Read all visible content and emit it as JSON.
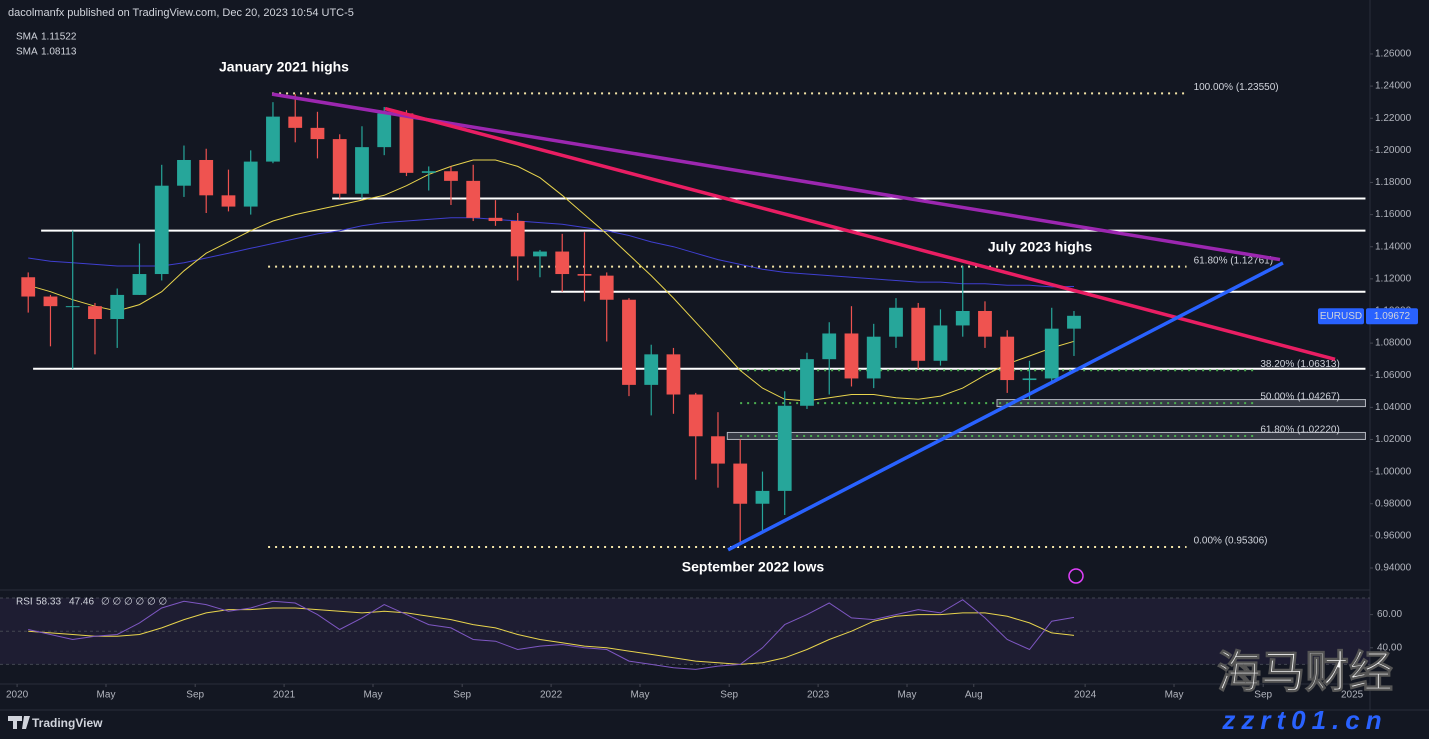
{
  "chart_data": {
    "type": "candlestick",
    "title": "dacolmanfx published on TradingView.com, Dec 20, 2023 10:54 UTC-5",
    "x": [
      2020.0417,
      2020.125,
      2020.2083,
      2020.2917,
      2020.375,
      2020.4583,
      2020.5417,
      2020.625,
      2020.7083,
      2020.7917,
      2020.875,
      2020.9583,
      2021.0417,
      2021.125,
      2021.2083,
      2021.2917,
      2021.375,
      2021.4583,
      2021.5417,
      2021.625,
      2021.7083,
      2021.7917,
      2021.875,
      2021.9583,
      2022.0417,
      2022.125,
      2022.2083,
      2022.2917,
      2022.375,
      2022.4583,
      2022.5417,
      2022.625,
      2022.7083,
      2022.7917,
      2022.875,
      2022.9583,
      2023.0417,
      2023.125,
      2023.2083,
      2023.2917,
      2023.375,
      2023.4583,
      2023.5417,
      2023.625,
      2023.7083,
      2023.7917,
      2023.875,
      2023.9583
    ],
    "series": [
      {
        "name": "EURUSD",
        "last": 1.09672,
        "up_color": "#26a69a",
        "down_color": "#ef5350",
        "open": [
          1.121,
          1.109,
          1.103,
          1.103,
          1.095,
          1.11,
          1.123,
          1.178,
          1.194,
          1.172,
          1.165,
          1.193,
          1.221,
          1.214,
          1.207,
          1.173,
          1.202,
          1.223,
          1.186,
          1.187,
          1.181,
          1.158,
          1.156,
          1.134,
          1.137,
          1.123,
          1.122,
          1.107,
          1.054,
          1.073,
          1.048,
          1.022,
          1.005,
          0.98,
          0.988,
          1.041,
          1.07,
          1.086,
          1.058,
          1.084,
          1.102,
          1.069,
          1.091,
          1.1,
          1.084,
          1.057,
          1.058,
          1.089
        ],
        "high": [
          1.124,
          1.11,
          1.15,
          1.105,
          1.114,
          1.142,
          1.191,
          1.203,
          1.201,
          1.188,
          1.2,
          1.23,
          1.235,
          1.224,
          1.21,
          1.215,
          1.227,
          1.225,
          1.19,
          1.19,
          1.191,
          1.169,
          1.161,
          1.138,
          1.148,
          1.149,
          1.124,
          1.108,
          1.079,
          1.077,
          1.049,
          1.037,
          1.02,
          1.0,
          1.05,
          1.074,
          1.093,
          1.103,
          1.092,
          1.108,
          1.105,
          1.101,
          1.128,
          1.106,
          1.088,
          1.069,
          1.102,
          1.1
        ],
        "low": [
          1.099,
          1.078,
          1.064,
          1.073,
          1.077,
          1.11,
          1.119,
          1.171,
          1.161,
          1.162,
          1.16,
          1.192,
          1.205,
          1.195,
          1.17,
          1.17,
          1.197,
          1.184,
          1.175,
          1.166,
          1.156,
          1.153,
          1.119,
          1.121,
          1.112,
          1.106,
          1.081,
          1.047,
          1.035,
          1.036,
          0.995,
          0.99,
          0.954,
          0.963,
          0.973,
          1.039,
          1.048,
          1.053,
          1.052,
          1.077,
          1.064,
          1.066,
          1.084,
          1.077,
          1.049,
          1.045,
          1.055,
          1.072
        ],
        "close": [
          1.109,
          1.103,
          1.103,
          1.095,
          1.11,
          1.123,
          1.178,
          1.194,
          1.172,
          1.165,
          1.193,
          1.221,
          1.214,
          1.207,
          1.173,
          1.202,
          1.223,
          1.186,
          1.187,
          1.181,
          1.158,
          1.156,
          1.134,
          1.137,
          1.123,
          1.122,
          1.107,
          1.054,
          1.073,
          1.048,
          1.022,
          1.005,
          0.98,
          0.988,
          1.041,
          1.07,
          1.086,
          1.058,
          1.084,
          1.102,
          1.069,
          1.091,
          1.1,
          1.084,
          1.057,
          1.058,
          1.089,
          1.097
        ]
      }
    ],
    "sma": [
      {
        "name": "SMA",
        "last": 1.11522,
        "color": "#3f3fd0",
        "values": [
          1.133,
          1.131,
          1.13,
          1.129,
          1.128,
          1.128,
          1.128,
          1.13,
          1.133,
          1.136,
          1.139,
          1.142,
          1.145,
          1.148,
          1.15,
          1.153,
          1.155,
          1.156,
          1.157,
          1.158,
          1.158,
          1.157,
          1.156,
          1.155,
          1.154,
          1.152,
          1.15,
          1.147,
          1.143,
          1.14,
          1.136,
          1.132,
          1.129,
          1.126,
          1.124,
          1.123,
          1.122,
          1.121,
          1.12,
          1.119,
          1.118,
          1.118,
          1.117,
          1.117,
          1.116,
          1.116,
          1.115,
          1.11522
        ]
      },
      {
        "name": "SMA",
        "last": 1.08113,
        "color": "#e8d44d",
        "values": [
          1.116,
          1.112,
          1.107,
          1.103,
          1.1,
          1.104,
          1.112,
          1.125,
          1.136,
          1.143,
          1.15,
          1.156,
          1.16,
          1.163,
          1.166,
          1.169,
          1.172,
          1.178,
          1.185,
          1.19,
          1.194,
          1.194,
          1.19,
          1.183,
          1.172,
          1.16,
          1.148,
          1.135,
          1.122,
          1.108,
          1.093,
          1.078,
          1.063,
          1.052,
          1.045,
          1.044,
          1.046,
          1.048,
          1.048,
          1.046,
          1.045,
          1.047,
          1.052,
          1.06,
          1.067,
          1.072,
          1.077,
          1.08113
        ]
      }
    ],
    "xlim": [
      2019.936,
      2025.067
    ],
    "xticks": [
      2020,
      {
        "value": 2020.333,
        "label": "May"
      },
      {
        "value": 2020.667,
        "label": "Sep"
      },
      2021,
      {
        "value": 2021.333,
        "label": "May"
      },
      {
        "value": 2021.667,
        "label": "Sep"
      },
      2022,
      {
        "value": 2022.333,
        "label": "May"
      },
      {
        "value": 2022.667,
        "label": "Sep"
      },
      2023,
      {
        "value": 2023.333,
        "label": "May"
      },
      {
        "value": 2023.583,
        "label": "Aug"
      },
      2024,
      {
        "value": 2024.333,
        "label": "May"
      },
      {
        "value": 2024.667,
        "label": "Sep"
      },
      2025
    ],
    "ylim": [
      0.9263,
      1.2936
    ],
    "yticks": [
      {
        "value": 0.94,
        "label": "0.94000"
      },
      {
        "value": 0.96,
        "label": "0.96000"
      },
      {
        "value": 0.98,
        "label": "0.98000"
      },
      {
        "value": 1.0,
        "label": "1.00000"
      },
      {
        "value": 1.02,
        "label": "1.02000"
      },
      {
        "value": 1.04,
        "label": "1.04000"
      },
      {
        "value": 1.06,
        "label": "1.06000"
      },
      {
        "value": 1.08,
        "label": "1.08000"
      },
      {
        "value": 1.1,
        "label": "1.10000"
      },
      {
        "value": 1.12,
        "label": "1.12000"
      },
      {
        "value": 1.14,
        "label": "1.14000"
      },
      {
        "value": 1.16,
        "label": "1.16000"
      },
      {
        "value": 1.18,
        "label": "1.18000"
      },
      {
        "value": 1.2,
        "label": "1.20000"
      },
      {
        "value": 1.22,
        "label": "1.22000"
      },
      {
        "value": 1.24,
        "label": "1.24000"
      },
      {
        "value": 1.26,
        "label": "1.26000"
      }
    ],
    "grid": false,
    "levels": [
      {
        "value": 1.17,
        "x": [
          2021.18,
          2025.05
        ],
        "color": "#ffffff"
      },
      {
        "value": 1.15,
        "x": [
          2020.09,
          2025.05
        ],
        "color": "#ffffff"
      },
      {
        "value": 1.112,
        "x": [
          2022.0,
          2025.05
        ],
        "color": "#ffffff"
      },
      {
        "value": 1.064,
        "x": [
          2020.06,
          2025.05
        ],
        "color": "#ffffff"
      }
    ],
    "fib": [
      {
        "value": 1.2355,
        "label": "100.00% (1.23550)",
        "x": [
          2020.955,
          2024.38
        ],
        "color": "#f5e6a8"
      },
      {
        "value": 1.12761,
        "label": "61.80% (1.12761)",
        "x": [
          2020.94,
          2024.38
        ],
        "color": "#f5e6a8"
      },
      {
        "value": 1.06313,
        "label": "38.20% (1.06313)",
        "x": [
          2022.708,
          2024.63
        ],
        "color": "#4caf50"
      },
      {
        "value": 1.04267,
        "label": "50.00% (1.04267)",
        "x": [
          2022.708,
          2024.63
        ],
        "color": "#4caf50",
        "zone": [
          2023.67,
          2025.05
        ]
      },
      {
        "value": 1.0222,
        "label": "61.80% (1.02220)",
        "x": [
          2022.708,
          2024.63
        ],
        "color": "#4caf50",
        "zone": [
          2022.66,
          2025.05
        ]
      },
      {
        "value": 0.95306,
        "label": "0.00% (0.95306)",
        "x": [
          2020.94,
          2024.38
        ],
        "color": "#f5e6a8"
      }
    ],
    "trendlines": [
      {
        "x": [
          2020.955,
          2024.73
        ],
        "y": [
          1.235,
          1.132
        ],
        "color": "#9c27b0"
      },
      {
        "x": [
          2021.378,
          2024.936
        ],
        "y": [
          1.226,
          1.0699
        ],
        "color": "#e91e63"
      },
      {
        "x": [
          2022.663,
          2024.741
        ],
        "y": [
          0.9513,
          1.1299
        ],
        "color": "#2962ff"
      }
    ],
    "annotations": [
      "January 2021 highs",
      "July 2023 highs",
      "September 2022 lows"
    ],
    "rsi": {
      "name": "RSI",
      "last": 58.33,
      "ma_last": 47.46,
      "extra": "∅ ∅ ∅ ∅ ∅ ∅",
      "color": "#7e57c2",
      "ma_color": "#e8d44d",
      "values": [
        51,
        48,
        45,
        47,
        48,
        55,
        64,
        68,
        66,
        62,
        64,
        68,
        67,
        60,
        51,
        58,
        66,
        60,
        54,
        52,
        45,
        44,
        39,
        41,
        42,
        40,
        39,
        32,
        30,
        28,
        27,
        29,
        30,
        40,
        54,
        60,
        67,
        58,
        57,
        60,
        63,
        61,
        69,
        58,
        45,
        39,
        56,
        58.33
      ],
      "ma": [
        50,
        49,
        48,
        47,
        47,
        48,
        52,
        57,
        61,
        63,
        63,
        64,
        64,
        63,
        62,
        61,
        62,
        61,
        59,
        57,
        54,
        52,
        48,
        45,
        43,
        41,
        40,
        38,
        36,
        34,
        32,
        31,
        30,
        31,
        34,
        39,
        45,
        50,
        56,
        59,
        60,
        60,
        61,
        61,
        59,
        55,
        49,
        47.46
      ],
      "ylim": [
        20,
        70
      ],
      "yticks": [
        {
          "value": 60,
          "label": "60.00"
        },
        {
          "value": 40,
          "label": "40.00"
        }
      ],
      "bands": [
        70,
        50,
        30
      ]
    },
    "footer": "TradingView",
    "watermark": [
      "海马财经",
      "zzrt01.cn"
    ]
  }
}
